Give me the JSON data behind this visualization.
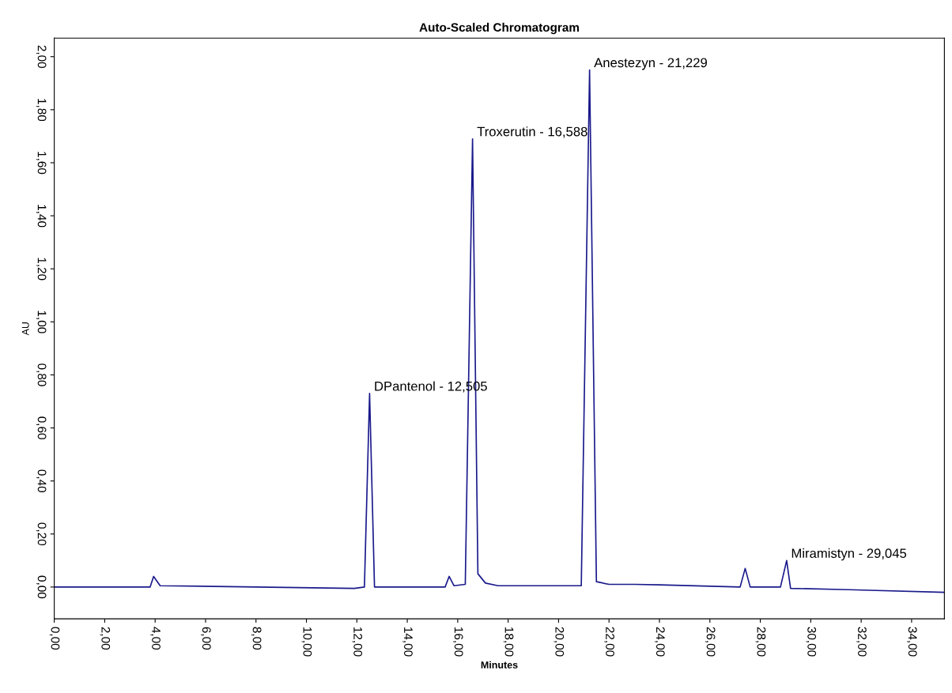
{
  "chart_data": {
    "type": "line",
    "title": "Auto-Scaled Chromatogram",
    "xlabel": "Minutes",
    "ylabel": "AU",
    "series": [
      {
        "color": "#1a1a8c",
        "x": [
          0,
          3.8,
          3.94,
          4.2,
          11.9,
          12.3,
          12.505,
          12.7,
          15.5,
          15.66,
          15.85,
          16.3,
          16.588,
          16.8,
          17.1,
          17.6,
          20.9,
          21.229,
          21.5,
          22.0,
          23.0,
          24.0,
          27.2,
          27.4,
          27.6,
          28.8,
          29.045,
          29.2,
          31.5,
          35.3
        ],
        "values": [
          0,
          0,
          0.04,
          0.005,
          -0.005,
          0,
          0.73,
          0,
          0,
          0.04,
          0.005,
          0.01,
          1.69,
          0.05,
          0.015,
          0.005,
          0.005,
          1.95,
          0.02,
          0.01,
          0.01,
          0.008,
          0,
          0.07,
          0,
          0,
          0.1,
          -0.005,
          -0.01,
          -0.02
        ]
      }
    ],
    "xlim": [
      0,
      35.3
    ],
    "ylim": [
      -0.12,
      2.07
    ],
    "xticks": [
      {
        "value": 0,
        "label": "0,00"
      },
      {
        "value": 2,
        "label": "2,00"
      },
      {
        "value": 4,
        "label": "4,00"
      },
      {
        "value": 6,
        "label": "6,00"
      },
      {
        "value": 8,
        "label": "8,00"
      },
      {
        "value": 10,
        "label": "10,00"
      },
      {
        "value": 12,
        "label": "12,00"
      },
      {
        "value": 14,
        "label": "14,00"
      },
      {
        "value": 16,
        "label": "16,00"
      },
      {
        "value": 18,
        "label": "18,00"
      },
      {
        "value": 20,
        "label": "20,00"
      },
      {
        "value": 22,
        "label": "22,00"
      },
      {
        "value": 24,
        "label": "24,00"
      },
      {
        "value": 26,
        "label": "26,00"
      },
      {
        "value": 28,
        "label": "28,00"
      },
      {
        "value": 30,
        "label": "30,00"
      },
      {
        "value": 32,
        "label": "32,00"
      },
      {
        "value": 34,
        "label": "34,00"
      }
    ],
    "yticks": [
      {
        "value": 0,
        "label": "0,00"
      },
      {
        "value": 0.2,
        "label": "0,20"
      },
      {
        "value": 0.4,
        "label": "0,40"
      },
      {
        "value": 0.6,
        "label": "0,60"
      },
      {
        "value": 0.8,
        "label": "0,80"
      },
      {
        "value": 1.0,
        "label": "1,00"
      },
      {
        "value": 1.2,
        "label": "1,20"
      },
      {
        "value": 1.4,
        "label": "1,40"
      },
      {
        "value": 1.6,
        "label": "1,60"
      },
      {
        "value": 1.8,
        "label": "1,80"
      },
      {
        "value": 2.0,
        "label": "2,00"
      }
    ],
    "annotations": [
      {
        "text": "DPantenol - 12,505",
        "x": 12.505,
        "y": 0.73
      },
      {
        "text": "Troxerutin - 16,588",
        "x": 16.588,
        "y": 1.69
      },
      {
        "text": "Anestezyn - 21,229",
        "x": 21.229,
        "y": 1.95
      },
      {
        "text": "Miramistyn - 29,045",
        "x": 29.045,
        "y": 0.1
      }
    ],
    "grid": false,
    "legend": false
  }
}
